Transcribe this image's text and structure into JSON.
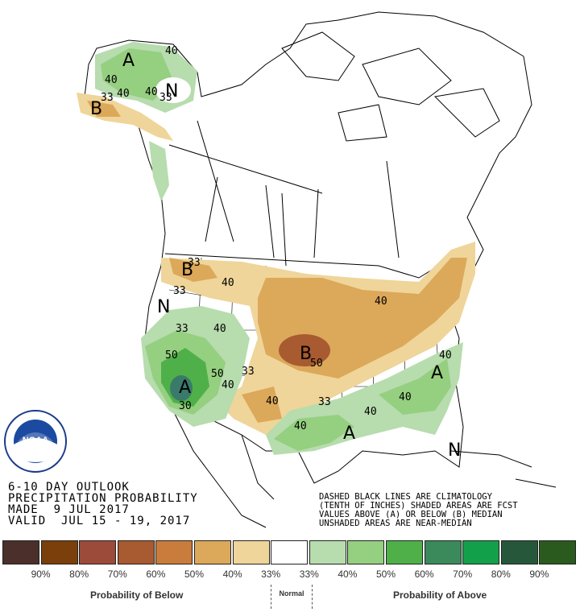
{
  "map": {
    "contour_labels": [
      "40",
      "40",
      "40",
      "33",
      "40",
      "33",
      "N",
      "B",
      "A",
      "B",
      "33",
      "40",
      "33",
      "40",
      "N",
      "33",
      "40",
      "50",
      "40",
      "50",
      "A",
      "30",
      "33",
      "40",
      "B",
      "50",
      "40",
      "40",
      "33",
      "40",
      "40",
      "A",
      "40",
      "40",
      "A",
      "40",
      "N"
    ],
    "big_letters": [
      "A",
      "B",
      "N",
      "B",
      "A",
      "B",
      "A",
      "A",
      "N"
    ]
  },
  "outlook": {
    "line1": "6-10 DAY OUTLOOK",
    "line2": "PRECIPITATION PROBABILITY",
    "line3": "MADE  9 JUL 2017",
    "line4": "VALID  JUL 15 - 19, 2017"
  },
  "note": {
    "line1": "DASHED BLACK LINES ARE CLIMATOLOGY",
    "line2": "(TENTH OF INCHES) SHADED AREAS ARE FCST",
    "line3": "VALUES ABOVE (A) OR BELOW (B) MEDIAN",
    "line4": "UNSHADED AREAS ARE NEAR-MEDIAN"
  },
  "logo": {
    "text": "NOAA",
    "ring": "U.S. DEPARTMENT OF COMMERCE · NATIONAL OCEANIC AND ATMOSPHERIC ADMINISTRATION"
  },
  "legend": {
    "colors": [
      "#4a2f2a",
      "#7a3f0a",
      "#9c4a3a",
      "#a85a30",
      "#c97c3c",
      "#dca85a",
      "#efd59a",
      "#ffffff",
      "#b7dcae",
      "#95cf80",
      "#4fb049",
      "#3a8a5c",
      "#13a04a",
      "#26573a",
      "#2b5a1e"
    ],
    "ticks": [
      "90%",
      "80%",
      "70%",
      "60%",
      "50%",
      "40%",
      "33%",
      "33%",
      "40%",
      "50%",
      "60%",
      "70%",
      "80%",
      "90%"
    ],
    "below_label": "Probability of Below",
    "normal_label": "Normal",
    "above_label": "Probability of Above"
  }
}
